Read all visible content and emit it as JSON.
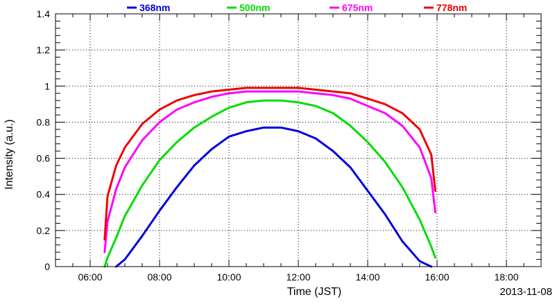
{
  "chart_data": {
    "type": "line",
    "xlabel": "Time (JST)",
    "ylabel": "Intensity (a.u.)",
    "date_label": "2013-11-08",
    "xlim": [
      "05:00",
      "19:00"
    ],
    "ylim": [
      0,
      1.4
    ],
    "grid": true,
    "legend_placement": "top",
    "x_tick_labels": [
      "06:00",
      "08:00",
      "10:00",
      "12:00",
      "14:00",
      "16:00",
      "18:00"
    ],
    "y_tick_labels": [
      "0",
      "0.2",
      "0.4",
      "0.6",
      "0.8",
      "1",
      "1.2",
      "1.4"
    ],
    "series": [
      {
        "name": "368nm",
        "color": "#0000dd",
        "x": [
          "06:45",
          "07:00",
          "07:30",
          "08:00",
          "08:30",
          "09:00",
          "09:30",
          "10:00",
          "10:30",
          "11:00",
          "11:30",
          "12:00",
          "12:30",
          "13:00",
          "13:30",
          "14:00",
          "14:30",
          "15:00",
          "15:30",
          "15:50"
        ],
        "y": [
          0.0,
          0.04,
          0.17,
          0.31,
          0.44,
          0.56,
          0.65,
          0.72,
          0.75,
          0.77,
          0.77,
          0.75,
          0.71,
          0.64,
          0.55,
          0.42,
          0.29,
          0.14,
          0.03,
          0.0
        ]
      },
      {
        "name": "500nm",
        "color": "#00dd00",
        "x": [
          "06:25",
          "06:30",
          "06:45",
          "07:00",
          "07:30",
          "08:00",
          "08:30",
          "09:00",
          "09:30",
          "10:00",
          "10:30",
          "11:00",
          "11:30",
          "12:00",
          "12:30",
          "13:00",
          "13:30",
          "14:00",
          "14:30",
          "15:00",
          "15:30",
          "15:50",
          "15:57"
        ],
        "y": [
          0.0,
          0.05,
          0.16,
          0.28,
          0.45,
          0.59,
          0.69,
          0.77,
          0.83,
          0.88,
          0.91,
          0.92,
          0.92,
          0.91,
          0.89,
          0.85,
          0.78,
          0.69,
          0.58,
          0.44,
          0.26,
          0.11,
          0.05
        ]
      },
      {
        "name": "675nm",
        "color": "#ff00ff",
        "x": [
          "06:25",
          "06:30",
          "06:45",
          "07:00",
          "07:30",
          "08:00",
          "08:30",
          "09:00",
          "09:30",
          "10:00",
          "10:30",
          "11:00",
          "11:30",
          "12:00",
          "12:30",
          "13:00",
          "13:30",
          "14:00",
          "14:30",
          "15:00",
          "15:30",
          "15:50",
          "15:57"
        ],
        "y": [
          0.08,
          0.25,
          0.43,
          0.55,
          0.7,
          0.8,
          0.87,
          0.91,
          0.94,
          0.96,
          0.97,
          0.97,
          0.97,
          0.97,
          0.96,
          0.95,
          0.93,
          0.89,
          0.85,
          0.78,
          0.66,
          0.49,
          0.3
        ]
      },
      {
        "name": "778nm",
        "color": "#ee0000",
        "x": [
          "06:25",
          "06:30",
          "06:45",
          "07:00",
          "07:30",
          "08:00",
          "08:30",
          "09:00",
          "09:30",
          "10:00",
          "10:30",
          "11:00",
          "11:30",
          "12:00",
          "12:30",
          "13:00",
          "13:30",
          "14:00",
          "14:30",
          "15:00",
          "15:30",
          "15:50",
          "15:57"
        ],
        "y": [
          0.15,
          0.39,
          0.56,
          0.66,
          0.79,
          0.87,
          0.92,
          0.95,
          0.97,
          0.98,
          0.99,
          0.99,
          0.99,
          0.99,
          0.98,
          0.97,
          0.96,
          0.93,
          0.9,
          0.85,
          0.76,
          0.62,
          0.42
        ]
      }
    ]
  }
}
